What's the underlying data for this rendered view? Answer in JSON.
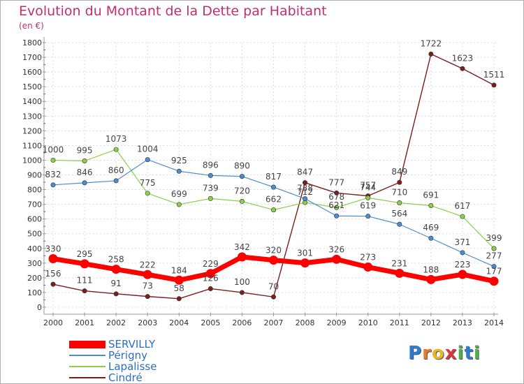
{
  "title": "Evolution du Montant de la Dette par Habitant",
  "unit": "(en €)",
  "brand": {
    "letters": [
      "P",
      "r",
      "o",
      "x",
      "i",
      "t",
      "i"
    ],
    "colors": [
      "#2e7ccf",
      "#e8792b",
      "#e8b82b",
      "#d9393e",
      "#4db04a",
      "#2e7ccf",
      "#4db04a"
    ]
  },
  "chart_data": {
    "type": "line",
    "x": [
      "2000",
      "2001",
      "2002",
      "2003",
      "2004",
      "2005",
      "2006",
      "2007",
      "2008",
      "2009",
      "2010",
      "2011",
      "2012",
      "2013",
      "2014"
    ],
    "yticks": [
      "0",
      "100",
      "200",
      "300",
      "400",
      "500",
      "600",
      "700",
      "800",
      "900",
      "1000",
      "1100",
      "1200",
      "1300",
      "1400",
      "1500",
      "1600",
      "1700",
      "1800"
    ],
    "ylim": [
      0,
      1800
    ],
    "grid": true,
    "series": [
      {
        "name": "SERVILLY",
        "color": "#ff0000",
        "values": [
          330,
          295,
          258,
          222,
          184,
          229,
          342,
          320,
          301,
          326,
          273,
          231,
          188,
          223,
          177
        ],
        "labels": [
          "330",
          "295",
          "258",
          "222",
          "184",
          "229",
          "342",
          "320",
          "301",
          "326",
          "273",
          "231",
          "188",
          "223",
          "177"
        ]
      },
      {
        "name": "Périgny",
        "color": "#4b8ed0",
        "values": [
          832,
          846,
          860,
          1004,
          925,
          896,
          890,
          817,
          738,
          621,
          619,
          564,
          469,
          371,
          277
        ],
        "labels": [
          "832",
          "846",
          "860",
          "1004",
          "925",
          "896",
          "890",
          "817",
          "738",
          "621",
          "619",
          "564",
          "469",
          "371",
          "277"
        ]
      },
      {
        "name": "Lapalisse",
        "color": "#8ccf4a",
        "values": [
          1000,
          995,
          1073,
          775,
          699,
          739,
          720,
          662,
          712,
          678,
          744,
          710,
          691,
          617,
          399
        ],
        "labels": [
          "1000",
          "995",
          "1073",
          "775",
          "699",
          "739",
          "720",
          "662",
          "712",
          "678",
          "744",
          "710",
          "691",
          "617",
          "399"
        ]
      },
      {
        "name": "Cindré",
        "color": "#7a1e1e",
        "values": [
          156,
          111,
          91,
          73,
          58,
          126,
          100,
          70,
          847,
          777,
          757,
          849,
          1722,
          1623,
          1511
        ],
        "labels": [
          "156",
          "111",
          "91",
          "73",
          "58",
          "126",
          "100",
          "70",
          "847",
          "777",
          "757",
          "849",
          "1722",
          "1623",
          "1511"
        ]
      }
    ]
  }
}
